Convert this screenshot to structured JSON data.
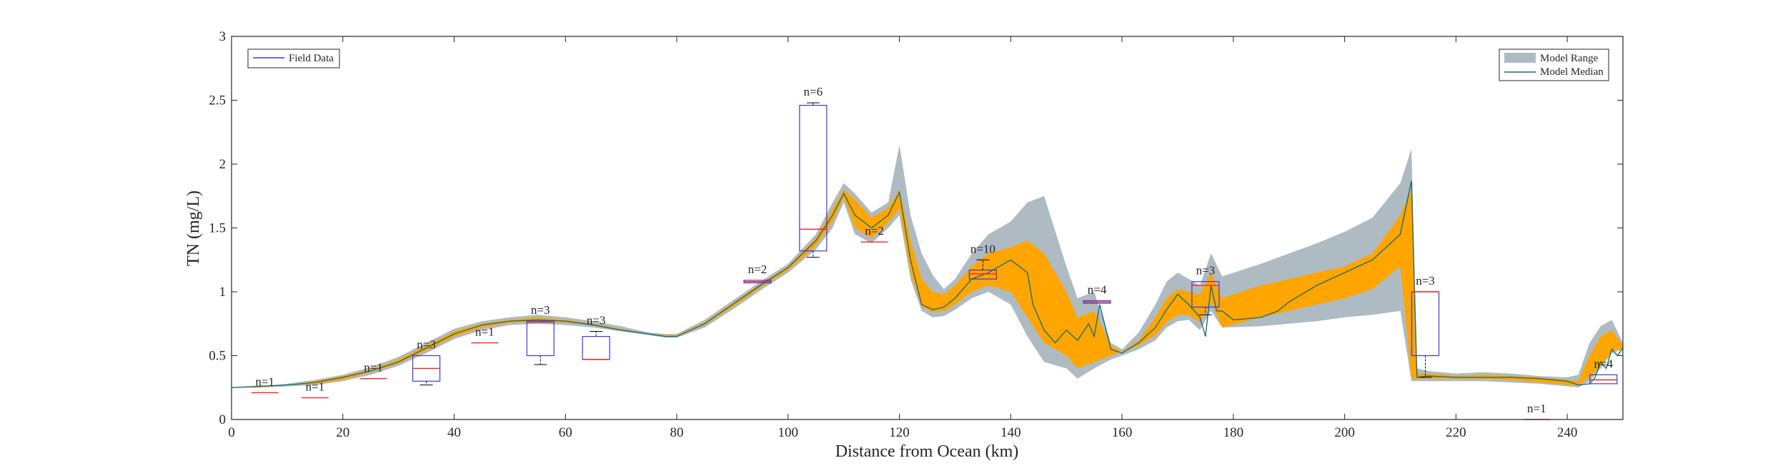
{
  "chart_data": {
    "type": "line",
    "xlabel": "Distance from Ocean (km)",
    "ylabel": "TN (mg/L)",
    "xlim": [
      0,
      250
    ],
    "ylim": [
      0,
      3
    ],
    "xticks": [
      0,
      20,
      40,
      60,
      80,
      100,
      120,
      140,
      160,
      180,
      200,
      220,
      240
    ],
    "yticks": [
      0,
      0.5,
      1,
      1.5,
      2,
      2.5,
      3
    ],
    "tick_labels_x": [
      "0",
      "20",
      "40",
      "60",
      "80",
      "100",
      "120",
      "140",
      "160",
      "180",
      "200",
      "220",
      "240"
    ],
    "tick_labels_y": [
      "0",
      "0.5",
      "1",
      "1.5",
      "2",
      "2.5",
      "3"
    ],
    "grid": false,
    "legend_left": {
      "placement": "top-left",
      "entries": [
        "Field Data"
      ]
    },
    "legend_right": {
      "placement": "top-right",
      "entries": [
        "Model Range",
        "Model Median"
      ]
    },
    "colors": {
      "model_range": "#aebbc2",
      "inner_band": "#ffa500",
      "median": "#1f6f6f",
      "box": "#3a3ad6",
      "box_median": "#ff2020",
      "whisker": "#000000"
    },
    "model_range": {
      "x": [
        0,
        5,
        10,
        15,
        20,
        25,
        30,
        35,
        40,
        45,
        50,
        55,
        60,
        65,
        70,
        75,
        78,
        80,
        85,
        90,
        95,
        100,
        105,
        108,
        110,
        112,
        115,
        118,
        120,
        122,
        124,
        126,
        128,
        130,
        133,
        136,
        140,
        143,
        146,
        150,
        152,
        155,
        158,
        160,
        163,
        166,
        168,
        170,
        172,
        174,
        176,
        178,
        185,
        190,
        195,
        200,
        205,
        210,
        212,
        213,
        215,
        220,
        225,
        230,
        235,
        240,
        242,
        244,
        246,
        248,
        250
      ],
      "lower": [
        0.25,
        0.25,
        0.26,
        0.27,
        0.3,
        0.35,
        0.42,
        0.52,
        0.63,
        0.7,
        0.74,
        0.75,
        0.74,
        0.72,
        0.69,
        0.66,
        0.64,
        0.64,
        0.72,
        0.86,
        1.01,
        1.15,
        1.33,
        1.5,
        1.7,
        1.45,
        1.38,
        1.5,
        1.6,
        1.1,
        0.85,
        0.8,
        0.81,
        0.86,
        0.95,
        1.0,
        0.9,
        0.65,
        0.45,
        0.4,
        0.32,
        0.4,
        0.47,
        0.5,
        0.55,
        0.62,
        0.72,
        0.77,
        0.78,
        0.7,
        0.85,
        0.72,
        0.73,
        0.75,
        0.77,
        0.8,
        0.82,
        0.85,
        0.3,
        0.3,
        0.3,
        0.3,
        0.3,
        0.29,
        0.28,
        0.26,
        0.25,
        0.3,
        0.4,
        0.52,
        0.55
      ],
      "upper": [
        0.25,
        0.26,
        0.28,
        0.31,
        0.35,
        0.41,
        0.49,
        0.6,
        0.71,
        0.77,
        0.8,
        0.82,
        0.8,
        0.77,
        0.73,
        0.68,
        0.67,
        0.67,
        0.78,
        0.93,
        1.08,
        1.22,
        1.45,
        1.7,
        1.85,
        1.77,
        1.62,
        1.7,
        2.15,
        1.6,
        1.3,
        1.13,
        1.02,
        1.1,
        1.3,
        1.45,
        1.55,
        1.7,
        1.75,
        1.2,
        0.95,
        1.0,
        0.6,
        0.55,
        0.68,
        0.9,
        1.08,
        1.15,
        1.1,
        1.05,
        1.3,
        1.12,
        1.22,
        1.3,
        1.38,
        1.47,
        1.58,
        1.85,
        2.12,
        0.4,
        0.38,
        0.36,
        0.37,
        0.36,
        0.34,
        0.33,
        0.35,
        0.6,
        0.73,
        0.78,
        0.6
      ]
    },
    "inner_band": {
      "x": [
        0,
        5,
        10,
        15,
        20,
        25,
        30,
        35,
        40,
        45,
        50,
        55,
        60,
        65,
        70,
        75,
        78,
        80,
        85,
        90,
        95,
        100,
        105,
        108,
        110,
        112,
        115,
        118,
        120,
        122,
        124,
        126,
        128,
        130,
        133,
        136,
        140,
        143,
        146,
        150,
        152,
        155,
        158,
        160,
        163,
        166,
        168,
        170,
        172,
        174,
        176,
        178,
        185,
        190,
        195,
        200,
        205,
        210,
        212,
        213,
        215,
        220,
        225,
        230,
        235,
        240,
        242,
        244,
        246,
        248,
        250
      ],
      "lower": [
        0.25,
        0.25,
        0.27,
        0.28,
        0.31,
        0.37,
        0.44,
        0.54,
        0.65,
        0.72,
        0.76,
        0.77,
        0.76,
        0.74,
        0.7,
        0.67,
        0.65,
        0.65,
        0.74,
        0.88,
        1.03,
        1.17,
        1.36,
        1.55,
        1.74,
        1.5,
        1.42,
        1.54,
        1.65,
        1.15,
        0.88,
        0.84,
        0.85,
        0.9,
        1.0,
        1.05,
        1.0,
        0.8,
        0.6,
        0.5,
        0.4,
        0.45,
        0.5,
        0.53,
        0.58,
        0.66,
        0.76,
        0.82,
        0.82,
        0.76,
        0.92,
        0.72,
        0.8,
        0.85,
        0.9,
        0.95,
        1.02,
        1.2,
        0.32,
        0.32,
        0.32,
        0.32,
        0.32,
        0.31,
        0.29,
        0.27,
        0.27,
        0.33,
        0.42,
        0.53,
        0.56
      ],
      "upper": [
        0.25,
        0.26,
        0.27,
        0.3,
        0.34,
        0.39,
        0.47,
        0.58,
        0.69,
        0.75,
        0.78,
        0.8,
        0.78,
        0.75,
        0.71,
        0.67,
        0.66,
        0.66,
        0.76,
        0.91,
        1.06,
        1.2,
        1.42,
        1.65,
        1.8,
        1.72,
        1.58,
        1.66,
        1.8,
        1.4,
        1.1,
        1.0,
        0.98,
        1.05,
        1.2,
        1.3,
        1.35,
        1.4,
        1.3,
        1.0,
        0.8,
        0.85,
        0.58,
        0.53,
        0.62,
        0.8,
        0.95,
        1.02,
        1.0,
        0.98,
        1.15,
        0.95,
        1.05,
        1.1,
        1.15,
        1.2,
        1.3,
        1.6,
        1.8,
        0.36,
        0.36,
        0.34,
        0.35,
        0.34,
        0.33,
        0.31,
        0.3,
        0.5,
        0.65,
        0.7,
        0.58
      ]
    },
    "model_median": {
      "x": [
        0,
        5,
        10,
        15,
        20,
        25,
        30,
        35,
        40,
        45,
        50,
        55,
        60,
        65,
        70,
        75,
        78,
        80,
        85,
        90,
        95,
        100,
        105,
        108,
        110,
        112,
        115,
        118,
        120,
        122,
        124,
        126,
        128,
        130,
        133,
        136,
        138,
        140,
        143,
        144,
        146,
        148,
        150,
        152,
        154,
        155,
        156,
        158,
        160,
        163,
        166,
        168,
        170,
        172,
        174,
        175,
        176,
        177,
        178,
        180,
        185,
        188,
        190,
        195,
        200,
        205,
        210,
        212,
        213,
        215,
        220,
        225,
        230,
        235,
        240,
        242,
        244,
        245,
        246,
        247,
        248,
        249,
        250
      ],
      "y": [
        0.25,
        0.26,
        0.27,
        0.29,
        0.33,
        0.38,
        0.45,
        0.56,
        0.67,
        0.74,
        0.77,
        0.78,
        0.77,
        0.74,
        0.7,
        0.67,
        0.65,
        0.65,
        0.75,
        0.9,
        1.05,
        1.19,
        1.4,
        1.6,
        1.77,
        1.6,
        1.5,
        1.6,
        1.78,
        1.25,
        0.9,
        0.86,
        0.88,
        0.95,
        1.1,
        1.15,
        1.2,
        1.25,
        1.15,
        0.9,
        0.7,
        0.6,
        0.7,
        0.62,
        0.75,
        0.65,
        0.9,
        0.55,
        0.52,
        0.6,
        0.72,
        0.86,
        0.98,
        0.9,
        0.8,
        0.65,
        1.05,
        0.85,
        0.85,
        0.78,
        0.8,
        0.85,
        0.92,
        1.05,
        1.15,
        1.25,
        1.45,
        1.87,
        0.33,
        0.34,
        0.33,
        0.33,
        0.33,
        0.32,
        0.3,
        0.27,
        0.28,
        0.33,
        0.45,
        0.4,
        0.55,
        0.5,
        0.56
      ]
    },
    "field_boxes": [
      {
        "x": 6,
        "median": 0.21,
        "q1": 0.21,
        "q3": 0.21,
        "min": 0.21,
        "max": 0.21,
        "label": "n=1"
      },
      {
        "x": 15,
        "median": 0.17,
        "q1": 0.17,
        "q3": 0.17,
        "min": 0.17,
        "max": 0.17,
        "label": "n=1"
      },
      {
        "x": 25.5,
        "median": 0.32,
        "q1": 0.32,
        "q3": 0.32,
        "min": 0.32,
        "max": 0.32,
        "label": "n=1"
      },
      {
        "x": 35,
        "median": 0.4,
        "q1": 0.3,
        "q3": 0.5,
        "min": 0.27,
        "max": 0.5,
        "label": "n=3"
      },
      {
        "x": 45.5,
        "median": 0.6,
        "q1": 0.6,
        "q3": 0.6,
        "min": 0.6,
        "max": 0.6,
        "label": "n=1"
      },
      {
        "x": 55.5,
        "median": 0.76,
        "q1": 0.5,
        "q3": 0.77,
        "min": 0.43,
        "max": 0.77,
        "label": "n=3"
      },
      {
        "x": 65.5,
        "median": 0.47,
        "q1": 0.47,
        "q3": 0.65,
        "min": 0.47,
        "max": 0.69,
        "label": "n=3"
      },
      {
        "x": 94.5,
        "median": 1.08,
        "q1": 1.07,
        "q3": 1.09,
        "min": 1.07,
        "max": 1.09,
        "label": "n=2"
      },
      {
        "x": 104.5,
        "median": 1.49,
        "q1": 1.32,
        "q3": 2.46,
        "min": 1.27,
        "max": 2.48,
        "label": "n=6"
      },
      {
        "x": 115.5,
        "median": 1.39,
        "q1": 1.39,
        "q3": 1.39,
        "min": 1.39,
        "max": 1.39,
        "label": "n=2"
      },
      {
        "x": 135,
        "median": 1.14,
        "q1": 1.1,
        "q3": 1.17,
        "min": 1.1,
        "max": 1.25,
        "label": "n=10"
      },
      {
        "x": 155.5,
        "median": 0.92,
        "q1": 0.91,
        "q3": 0.93,
        "min": 0.91,
        "max": 0.93,
        "label": "n=4"
      },
      {
        "x": 175,
        "median": 1.05,
        "q1": 0.88,
        "q3": 1.08,
        "min": 0.82,
        "max": 1.08,
        "label": "n=3"
      },
      {
        "x": 214.5,
        "median": 1.0,
        "q1": 0.5,
        "q3": 1.0,
        "min": 0.33,
        "max": 1.0,
        "label": "n=3"
      },
      {
        "x": 234.5,
        "median": 0.0,
        "q1": 0.0,
        "q3": 0.0,
        "min": 0.0,
        "max": 0.0,
        "label": "n=1"
      },
      {
        "x": 246.5,
        "median": 0.31,
        "q1": 0.28,
        "q3": 0.35,
        "min": 0.28,
        "max": 0.35,
        "label": "n=4"
      }
    ]
  }
}
